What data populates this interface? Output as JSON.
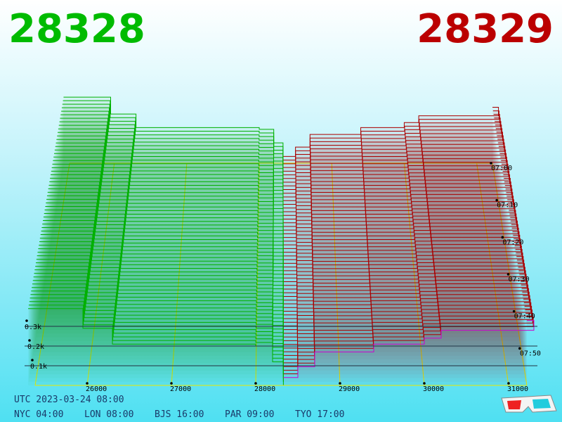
{
  "chart_data": {
    "type": "depth3d",
    "bid_price": "28328",
    "ask_price": "28329",
    "bids": {
      "color": "#00b000",
      "x": [
        25300,
        25950,
        26300,
        28000,
        28200,
        28328
      ],
      "values": [
        390,
        290,
        210,
        200,
        120,
        0
      ]
    },
    "asks": {
      "color": "#aa0000",
      "front_color": "#cc00cc",
      "x": [
        28329,
        28500,
        28700,
        29400,
        30000,
        30200,
        31300
      ],
      "values": [
        40,
        95,
        170,
        210,
        240,
        280,
        330
      ]
    },
    "xlim": [
      25383,
      31217
    ],
    "xticks": [
      26000,
      27000,
      28000,
      29000,
      30000,
      31000
    ],
    "ylim": [
      0,
      350
    ],
    "yticks": [
      {
        "value": 100,
        "label": "0.1k"
      },
      {
        "value": 200,
        "label": "0.2k"
      },
      {
        "value": 300,
        "label": "0.3k"
      }
    ],
    "zlim": [
      0,
      60
    ],
    "zticks": [
      {
        "value": 0,
        "label": "07:00"
      },
      {
        "value": 10,
        "label": "07:10"
      },
      {
        "value": 20,
        "label": "07:20"
      },
      {
        "value": 30,
        "label": "07:30"
      },
      {
        "value": 40,
        "label": "07:40"
      },
      {
        "value": 50,
        "label": "07:50"
      }
    ],
    "utc": "UTC 2023-03-24 08:00",
    "zones": [
      "NYC 04:00",
      "LON 08:00",
      "BJS 16:00",
      "PAR 09:00",
      "TYO 17:00"
    ]
  }
}
